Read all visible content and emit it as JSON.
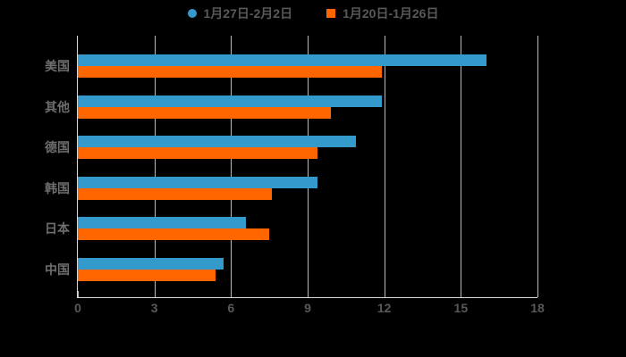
{
  "background_color": "#000000",
  "axis_color": "#d9d9d9",
  "grid_color": "#b9b9b9",
  "text_color": "#595959",
  "chart_data": {
    "type": "bar",
    "orientation": "horizontal",
    "title": "",
    "xlabel": "",
    "ylabel": "",
    "xlim": [
      0,
      18
    ],
    "xticks": [
      0,
      3,
      6,
      9,
      12,
      15,
      18
    ],
    "grid": true,
    "legend_position": "top",
    "categories": [
      "美国",
      "其他",
      "德国",
      "韩国",
      "日本",
      "中国"
    ],
    "series": [
      {
        "name": "1月27日-2月2日",
        "color": "#3499cb",
        "marker": "circle",
        "values": [
          16.0,
          11.9,
          10.9,
          9.4,
          6.6,
          5.7
        ]
      },
      {
        "name": "1月20日-1月26日",
        "color": "#ff6600",
        "marker": "square",
        "values": [
          11.9,
          9.9,
          9.4,
          7.6,
          7.5,
          5.4
        ]
      }
    ]
  }
}
